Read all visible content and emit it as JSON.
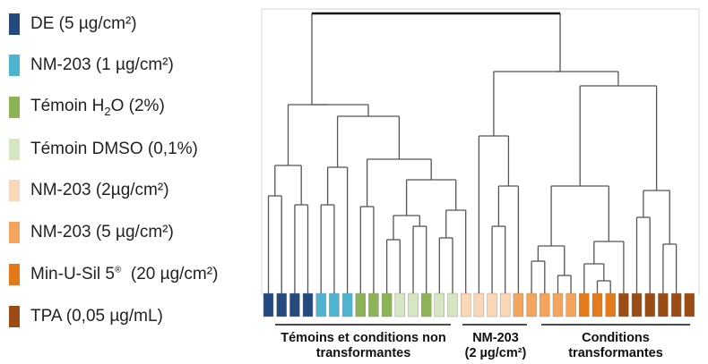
{
  "legend": [
    {
      "label": "DE (5 µg/cm²)",
      "color": "#254a80"
    },
    {
      "label": "NM-203 (1 µg/cm²)",
      "color": "#4fb4d0"
    },
    {
      "prefix": "Témoin H",
      "sub": "2",
      "suffix": "O (2%)",
      "color": "#8cb456"
    },
    {
      "label": "Témoin DMSO (0,1%)",
      "color": "#d6e6c2"
    },
    {
      "label": "NM-203 (2µg/cm²)",
      "color": "#fad7b7"
    },
    {
      "label": "NM-203 (5 µg/cm²)",
      "color": "#f5a45c"
    },
    {
      "prefix": "Min-U-Sil 5",
      "sup": "®",
      "suffix": "  (20 µg/cm²)",
      "color": "#e57a1b"
    },
    {
      "label": "TPA (0,05 µg/mL)",
      "color": "#9a4c14"
    }
  ],
  "leaves": [
    0,
    0,
    0,
    0,
    1,
    1,
    1,
    2,
    2,
    2,
    3,
    3,
    2,
    3,
    3,
    4,
    4,
    4,
    4,
    5,
    5,
    5,
    5,
    5,
    6,
    6,
    6,
    7,
    7,
    7,
    7,
    7,
    7
  ],
  "groups": [
    {
      "line1": "Témoins et conditions non",
      "line2": "transformantes"
    },
    {
      "line1": "NM-203",
      "line2": "(2 µg/cm²)"
    },
    {
      "line1": "Conditions",
      "line2": "transformantes"
    }
  ]
}
